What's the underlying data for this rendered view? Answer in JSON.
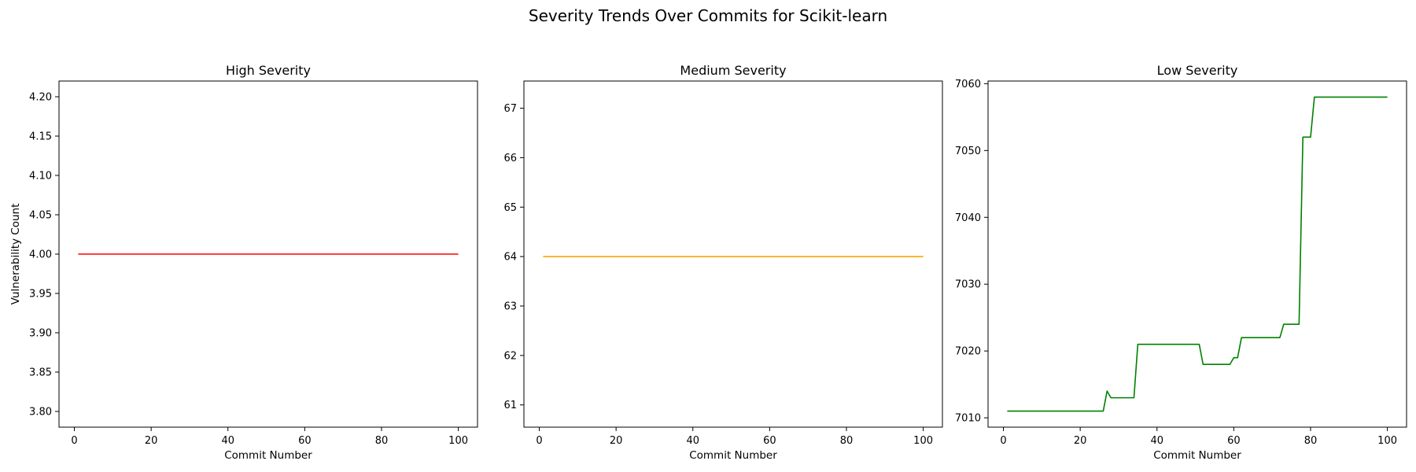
{
  "figure": {
    "title": "Severity Trends Over Commits for Scikit-learn"
  },
  "chart_data": [
    {
      "type": "line",
      "title": "High Severity",
      "xlabel": "Commit Number",
      "ylabel": "Vulnerability Count",
      "xlim": [
        -4,
        105
      ],
      "ylim": [
        3.78,
        4.22
      ],
      "xticks": [
        0,
        20,
        40,
        60,
        80,
        100
      ],
      "xtick_labels": [
        "0",
        "20",
        "40",
        "60",
        "80",
        "100"
      ],
      "yticks": [
        3.8,
        3.85,
        3.9,
        3.95,
        4.0,
        4.05,
        4.1,
        4.15,
        4.2
      ],
      "ytick_labels": [
        "3.80",
        "3.85",
        "3.90",
        "3.95",
        "4.00",
        "4.05",
        "4.10",
        "4.15",
        "4.20"
      ],
      "grid": false,
      "series": [
        {
          "color": "#ff0000",
          "x": [
            1,
            100
          ],
          "y": [
            4,
            4
          ]
        }
      ]
    },
    {
      "type": "line",
      "title": "Medium Severity",
      "xlabel": "Commit Number",
      "ylabel": "",
      "xlim": [
        -4,
        105
      ],
      "ylim": [
        60.55,
        67.55
      ],
      "xticks": [
        0,
        20,
        40,
        60,
        80,
        100
      ],
      "xtick_labels": [
        "0",
        "20",
        "40",
        "60",
        "80",
        "100"
      ],
      "yticks": [
        61,
        62,
        63,
        64,
        65,
        66,
        67
      ],
      "ytick_labels": [
        "61",
        "62",
        "63",
        "64",
        "65",
        "66",
        "67"
      ],
      "grid": false,
      "series": [
        {
          "color": "#ffa500",
          "x": [
            1,
            100
          ],
          "y": [
            64,
            64
          ]
        }
      ]
    },
    {
      "type": "line",
      "title": "Low Severity",
      "xlabel": "Commit Number",
      "ylabel": "",
      "xlim": [
        -4,
        105
      ],
      "ylim": [
        7008.6,
        7060.4
      ],
      "xticks": [
        0,
        20,
        40,
        60,
        80,
        100
      ],
      "xtick_labels": [
        "0",
        "20",
        "40",
        "60",
        "80",
        "100"
      ],
      "yticks": [
        7010,
        7020,
        7030,
        7040,
        7050,
        7060
      ],
      "ytick_labels": [
        "7010",
        "7020",
        "7030",
        "7040",
        "7050",
        "7060"
      ],
      "grid": false,
      "series": [
        {
          "color": "#008000",
          "x": [
            1,
            26,
            27,
            28,
            34,
            35,
            51,
            52,
            59,
            60,
            61,
            62,
            72,
            73,
            77,
            78,
            80,
            81,
            100
          ],
          "y": [
            7011,
            7011,
            7014,
            7013,
            7013,
            7021,
            7021,
            7018,
            7018,
            7019,
            7019,
            7022,
            7022,
            7024,
            7024,
            7052,
            7052,
            7058,
            7058
          ]
        }
      ]
    }
  ]
}
